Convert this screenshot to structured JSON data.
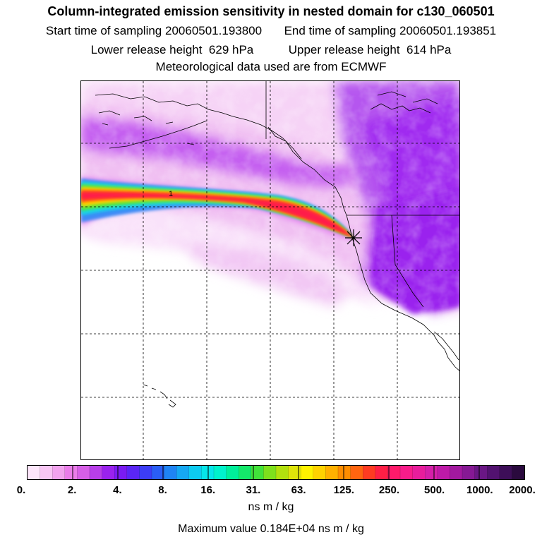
{
  "header": {
    "title": "Column-integrated emission sensitivity in nested domain for c130_060501",
    "start_label": "Start time of sampling",
    "start_value": "20060501.193800",
    "end_label": "End time of sampling",
    "end_value": "20060501.193851",
    "lower_label": "Lower release height",
    "lower_value": "629 hPa",
    "upper_label": "Upper release height",
    "upper_value": "614 hPa",
    "met_source": "Meteorological data used are from ECMWF"
  },
  "map": {
    "plume_marker_label": "1",
    "release_point_symbol": "release-star",
    "grid_style": "dashed"
  },
  "colorbar": {
    "labels": [
      "0.",
      "2.",
      "4.",
      "8.",
      "16.",
      "31.",
      "63.",
      "125.",
      "250.",
      "500.",
      "1000.",
      "2000."
    ],
    "colors": [
      "#fde6fb",
      "#f8c6f4",
      "#f2a3ee",
      "#ea7de9",
      "#d65fe6",
      "#b83ee9",
      "#9a22ee",
      "#7a1bf2",
      "#5a26f5",
      "#3c3df6",
      "#2a5ef6",
      "#1f84f4",
      "#16a8f2",
      "#0dcbf0",
      "#06e6ea",
      "#00f2cc",
      "#00ee9a",
      "#14e86a",
      "#41e23a",
      "#7ee01c",
      "#b2e00e",
      "#dfe50a",
      "#fff200",
      "#ffd200",
      "#ffb000",
      "#ff8d00",
      "#ff6510",
      "#ff3b22",
      "#ff1f45",
      "#ff1a6a",
      "#f81c8a",
      "#e81d9c",
      "#d51fa9",
      "#be1aa8",
      "#a2199f",
      "#861994",
      "#6a1785",
      "#521270",
      "#3d0e58",
      "#2a0a3e"
    ],
    "units": "ns m / kg",
    "max_value_text": "Maximum value  0.184E+04 ns m / kg"
  },
  "colors": {
    "low": "#f5cdf5",
    "mid": "#c04ef0",
    "high": "#a020f0",
    "plume_core": "#ff2a2a",
    "plume_edge": "#1ec8e0"
  }
}
